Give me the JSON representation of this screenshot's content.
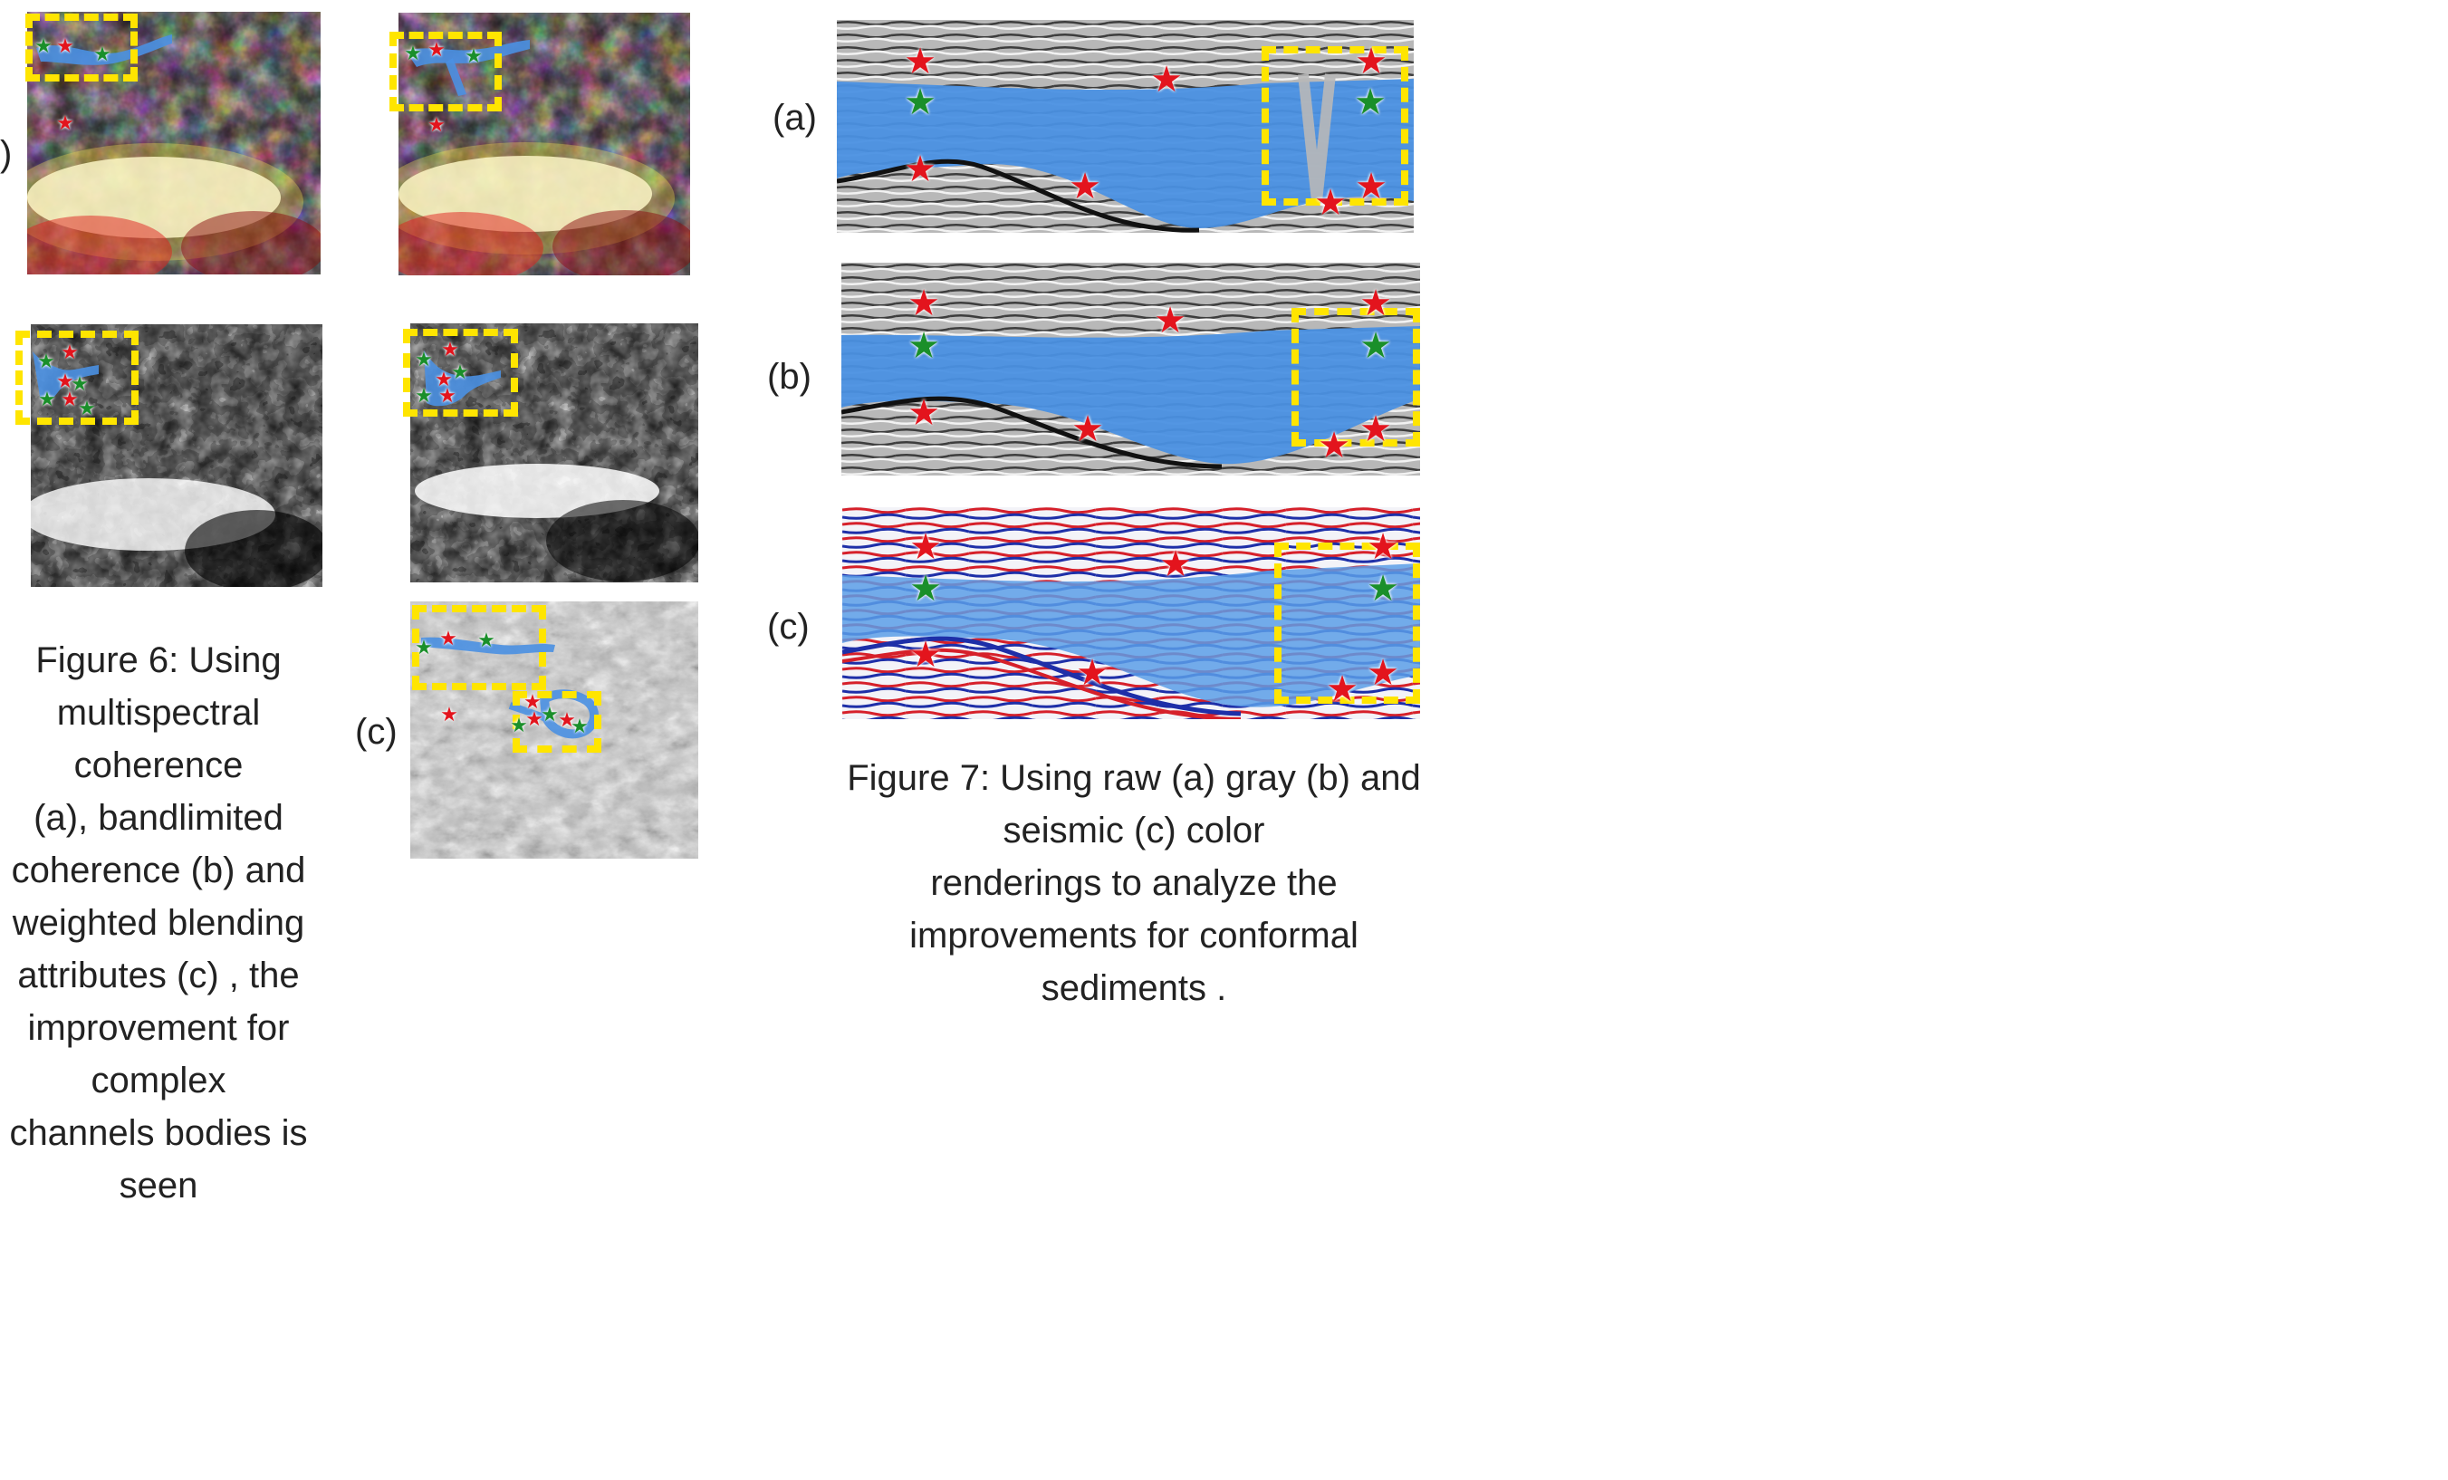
{
  "figure6": {
    "caption_lines": [
      "Figure 6:  Using",
      "multispectral coherence",
      "(a), bandlimited",
      "coherence (b) and",
      "weighted blending",
      "attributes (c) , the",
      "improvement for complex",
      "channels bodies is seen"
    ],
    "side_label_left_top": ")",
    "label_c": "(c)"
  },
  "figure7": {
    "caption_lines": [
      "Figure 7:  Using raw (a) gray (b) and seismic (c) color",
      "renderings to analyze the improvements for conformal",
      "sediments ."
    ],
    "label_a": "(a)",
    "label_b": "(b)",
    "label_c": "(c)"
  },
  "colors": {
    "highlight_box": "#ffe500",
    "body_blue": "#4a90e2",
    "star_red": "#e3141d",
    "star_green": "#1a8f2a"
  }
}
